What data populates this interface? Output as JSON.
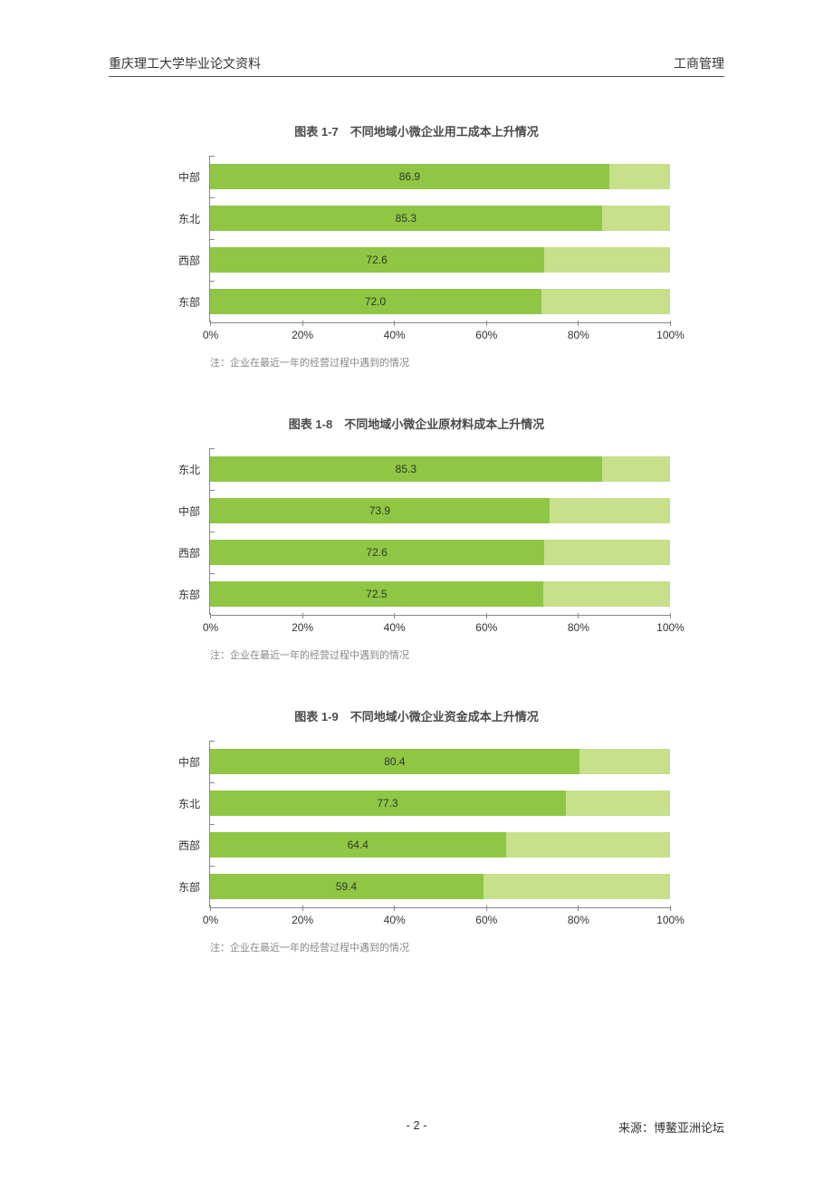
{
  "header": {
    "left": "重庆理工大学毕业论文资料",
    "right": "工商管理"
  },
  "note_text": "注：企业在最近一年的经营过程中遇到的情况",
  "footer": {
    "page": "- 2 -",
    "source": "来源：博鳌亚洲论坛"
  },
  "axis": {
    "ticks": [
      0,
      20,
      40,
      60,
      80,
      100
    ],
    "tick_labels": [
      "0%",
      "20%",
      "40%",
      "60%",
      "80%",
      "100%"
    ],
    "max": 100
  },
  "colors": {
    "seg1": "#8fc744",
    "seg2": "#c6e08b",
    "axis": "#888888",
    "text": "#333333",
    "note": "#888888",
    "bg": "#ffffff"
  },
  "charts": [
    {
      "title": "图表 1-7　不同地域小微企业用工成本上升情况",
      "type": "stacked-bar-horizontal",
      "categories": [
        "中部",
        "东北",
        "西部",
        "东部"
      ],
      "values": [
        86.9,
        85.3,
        72.6,
        72.0
      ],
      "seg2_values": [
        13.1,
        14.7,
        27.4,
        28.0
      ]
    },
    {
      "title": "图表 1-8　不同地域小微企业原材料成本上升情况",
      "type": "stacked-bar-horizontal",
      "categories": [
        "东北",
        "中部",
        "西部",
        "东部"
      ],
      "values": [
        85.3,
        73.9,
        72.6,
        72.5
      ],
      "seg2_values": [
        14.7,
        26.1,
        27.4,
        27.5
      ]
    },
    {
      "title": "图表 1-9　不同地域小微企业资金成本上升情况",
      "type": "stacked-bar-horizontal",
      "categories": [
        "中部",
        "东北",
        "西部",
        "东部"
      ],
      "values": [
        80.4,
        77.3,
        64.4,
        59.4
      ],
      "seg2_values": [
        19.6,
        22.7,
        35.6,
        40.6
      ]
    }
  ]
}
